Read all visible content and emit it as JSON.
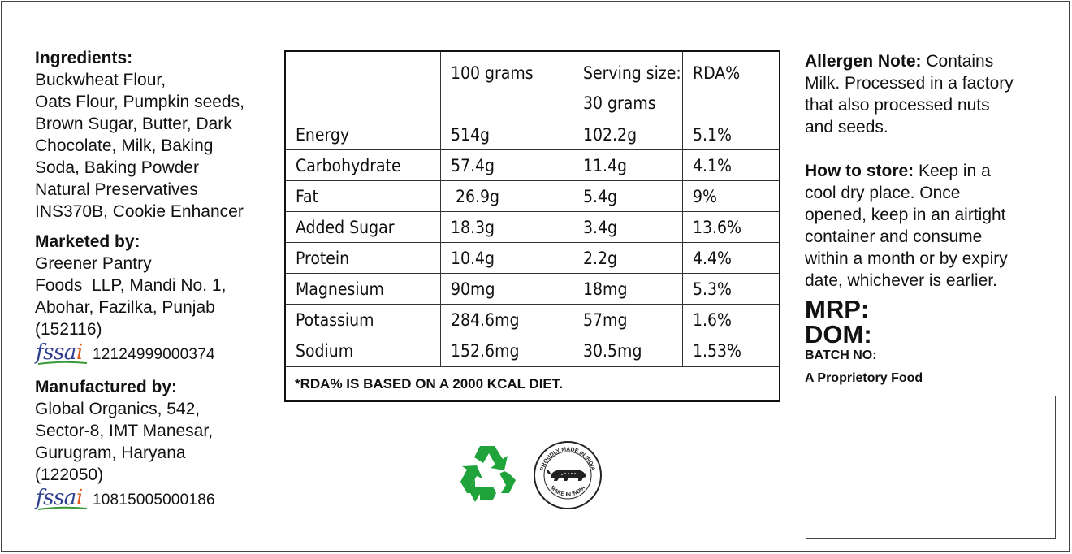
{
  "left": {
    "ingredients_title": "Ingredients:",
    "ingredients_lines": [
      "Buckwheat Flour,",
      "Oats Flour, Pumpkin seeds,",
      "Brown Sugar, Butter, Dark",
      "Chocolate, Milk, Baking",
      "Soda, Baking Powder",
      "Natural Preservatives",
      "INS370B, Cookie Enhancer"
    ],
    "marketed_title": "Marketed by:",
    "marketed_lines": [
      "Greener Pantry",
      "Foods  LLP, Mandi No. 1,",
      "Abohar, Fazilka, Punjab",
      "(152116)"
    ],
    "fssai_logo_text": "fssai",
    "marketed_fssai": "12124999000374",
    "manufactured_title": "Manufactured by:",
    "manufactured_lines": [
      "Global Organics, 542,",
      "Sector-8, IMT Manesar,",
      "Gurugram, Haryana",
      "(122050)"
    ],
    "manufactured_fssai": "10815005000186"
  },
  "nutrition": {
    "headers": [
      "",
      "100 grams",
      "Serving size:\n30 grams",
      "RDA%"
    ],
    "header_serving_line1": "Serving size:",
    "header_serving_line2": "30 grams",
    "rows": [
      [
        "Energy",
        "514g",
        "102.2g",
        "5.1%"
      ],
      [
        "Carbohydrate",
        "57.4g",
        "11.4g",
        "4.1%"
      ],
      [
        "Fat",
        " 26.9g",
        "5.4g",
        "9%"
      ],
      [
        "Added Sugar",
        "18.3g",
        "3.4g",
        "13.6%"
      ],
      [
        "Protein",
        "10.4g",
        "2.2g",
        "4.4%"
      ],
      [
        "Magnesium",
        "90mg",
        "18mg",
        "5.3%"
      ],
      [
        "Potassium",
        "284.6mg",
        "57mg",
        "1.6%"
      ],
      [
        "Sodium",
        "152.6mg",
        "30.5mg",
        "1.53%"
      ]
    ],
    "footnote": "*RDA% IS BASED ON A 2000 KCAL DIET."
  },
  "badges": {
    "recycle_icon": "recycle-icon",
    "make_in_india_top": "PROUDLY MADE IN INDIA",
    "make_in_india_bottom": "MAKE IN INDIA"
  },
  "right": {
    "allergen_title": "Allergen Note:",
    "allergen_lines": [
      " Contains",
      "Milk. Processed in a factory",
      "that also processed nuts",
      "and seeds."
    ],
    "store_title": "How to store:",
    "store_lines": [
      " Keep in a",
      "cool dry place. Once",
      "opened, keep in an airtight",
      "container and consume",
      "within a month or by expiry",
      "date, whichever is earlier."
    ],
    "mrp": "MRP:",
    "dom": "DOM:",
    "batch": "BATCH NO:",
    "proprietary": "A Proprietory Food"
  },
  "colors": {
    "fssai_blue": "#2e3f8f",
    "fssai_orange": "#e05a1e",
    "fssai_green": "#3a9a3a",
    "recycle_green": "#1fa33a"
  }
}
